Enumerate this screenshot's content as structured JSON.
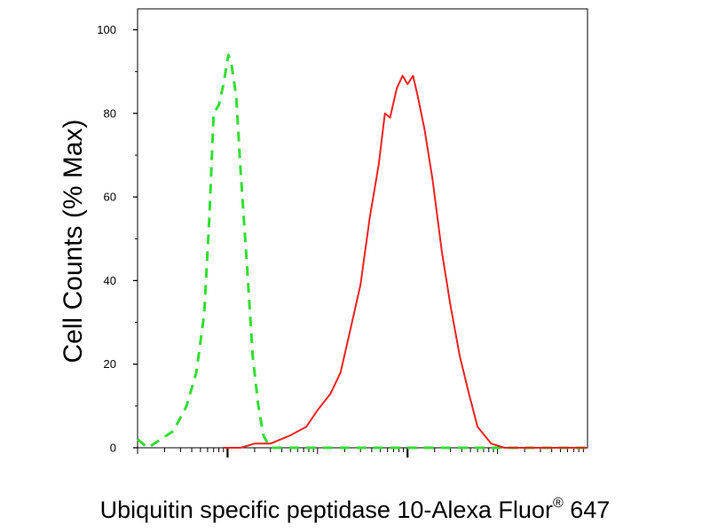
{
  "chart_data": {
    "type": "area",
    "title": "",
    "xlabel_main": "Ubiquitin specific peptidase 10-Alexa Fluor",
    "xlabel_sup": "®",
    "xlabel_tail": " 647",
    "ylabel": "Cell Counts (% Max)",
    "x_scale": "log",
    "xlim": [
      1,
      100000
    ],
    "ylim": [
      0,
      105
    ],
    "yticks": [
      0,
      20,
      40,
      60,
      80,
      100
    ],
    "ytick_labels": [
      "0",
      "20",
      "40",
      "60",
      "80",
      "100"
    ],
    "xtick_major": [
      10,
      1000
    ],
    "grid": false,
    "legend": "none",
    "series": [
      {
        "color": "#33dd33",
        "line_style": "dashed",
        "points": [
          [
            1.0,
            2
          ],
          [
            1.3,
            0
          ],
          [
            1.8,
            2
          ],
          [
            2.5,
            4
          ],
          [
            3.5,
            10
          ],
          [
            4.5,
            18
          ],
          [
            5.5,
            32
          ],
          [
            6.3,
            56
          ],
          [
            7.0,
            80
          ],
          [
            8.0,
            82
          ],
          [
            9.0,
            87
          ],
          [
            10.2,
            94
          ],
          [
            11.0,
            92
          ],
          [
            12.5,
            84
          ],
          [
            14.0,
            66
          ],
          [
            16.5,
            43
          ],
          [
            19.0,
            22
          ],
          [
            22.0,
            10
          ],
          [
            25.0,
            3
          ],
          [
            28.0,
            1
          ],
          [
            32.0,
            0
          ],
          [
            100000.0,
            0
          ]
        ]
      },
      {
        "color": "#ee2222",
        "line_style": "solid",
        "points": [
          [
            9.0,
            0
          ],
          [
            14.0,
            0
          ],
          [
            20.0,
            1
          ],
          [
            30.0,
            1
          ],
          [
            50.0,
            3
          ],
          [
            75.0,
            5
          ],
          [
            100.0,
            9
          ],
          [
            140.0,
            13
          ],
          [
            180.0,
            18
          ],
          [
            230.0,
            28
          ],
          [
            300.0,
            39
          ],
          [
            380.0,
            55
          ],
          [
            480.0,
            68
          ],
          [
            560.0,
            80
          ],
          [
            640.0,
            79
          ],
          [
            760.0,
            86
          ],
          [
            880.0,
            89
          ],
          [
            1000.0,
            87
          ],
          [
            1150.0,
            89
          ],
          [
            1300.0,
            84
          ],
          [
            1550.0,
            76
          ],
          [
            1900.0,
            64
          ],
          [
            2400.0,
            47
          ],
          [
            3000.0,
            34
          ],
          [
            3800.0,
            22
          ],
          [
            4800.0,
            13
          ],
          [
            6000.0,
            5
          ],
          [
            8500.0,
            1
          ],
          [
            12000.0,
            0
          ],
          [
            100000.0,
            0
          ]
        ]
      }
    ]
  }
}
